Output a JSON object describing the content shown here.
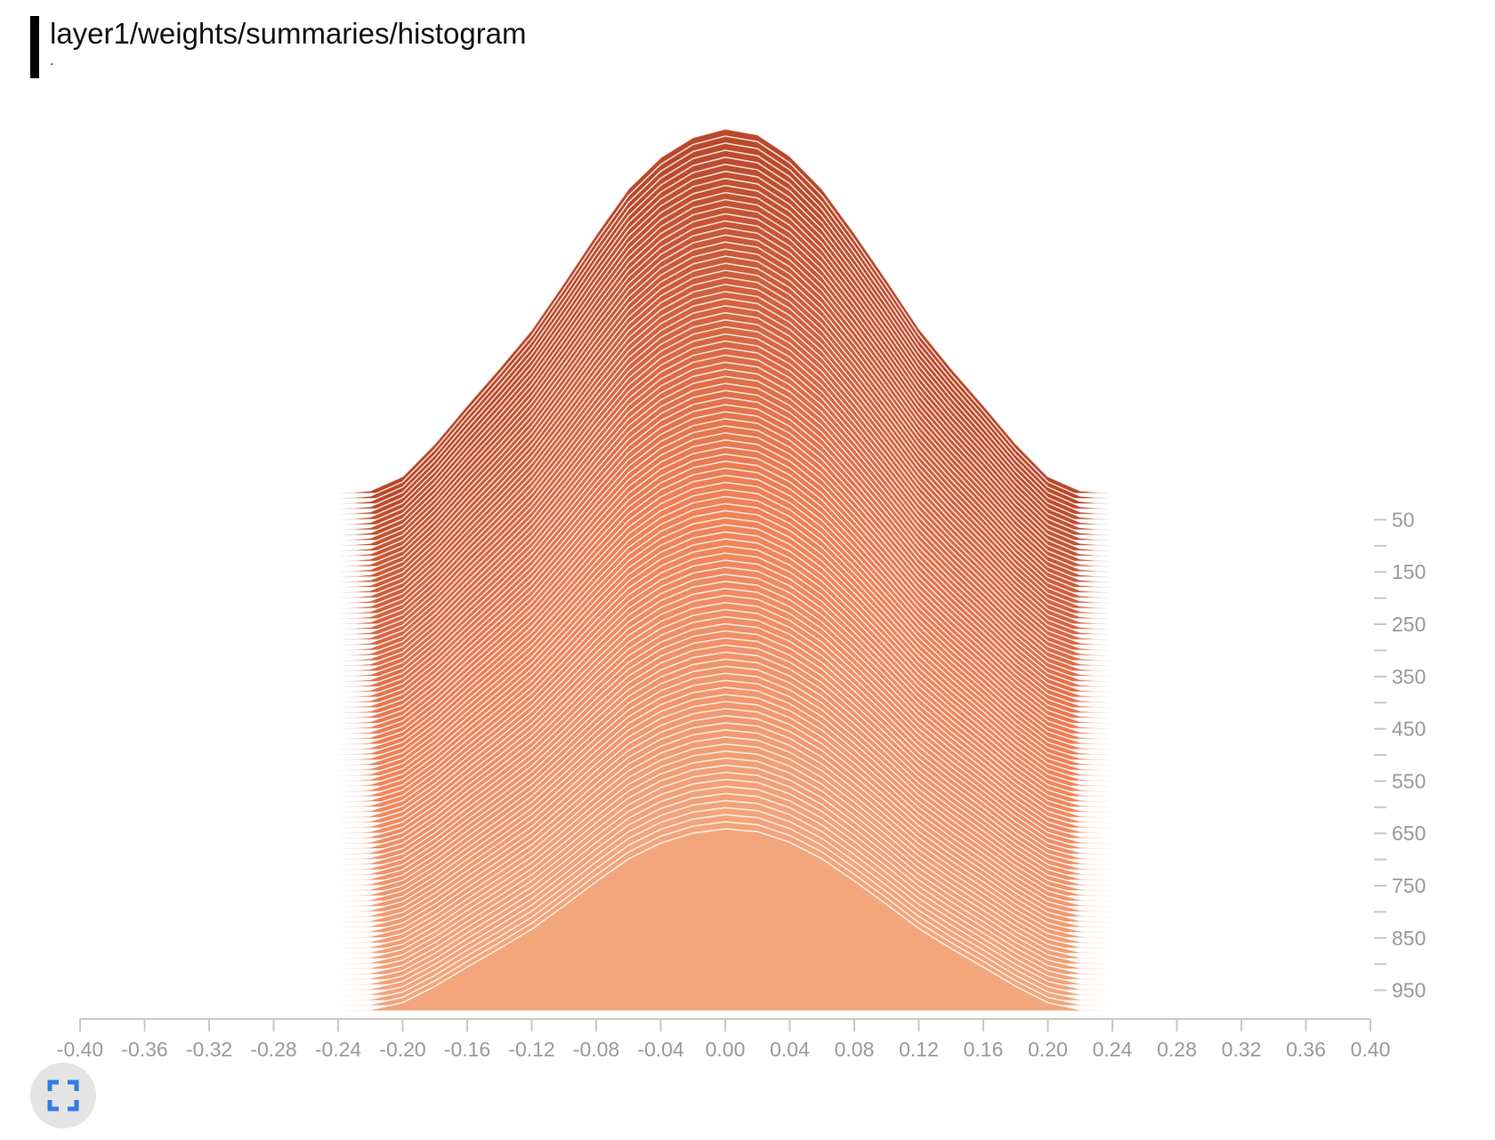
{
  "card": {
    "title": "layer1/weights/summaries/histogram",
    "subtitle": "."
  },
  "icons": {
    "fullscreen": "fullscreen-icon"
  },
  "colors": {
    "oldest_step": "#b8482a",
    "mid_step": "#ee7f55",
    "newest_step": "#f3a67c",
    "axis": "#c8c8c8",
    "tick_text": "#9a9a9a"
  },
  "chart_data": {
    "type": "histogram-offset",
    "title": "layer1/weights/summaries/histogram",
    "x_ticks": [
      "-0.40",
      "-0.36",
      "-0.32",
      "-0.28",
      "-0.24",
      "-0.20",
      "-0.16",
      "-0.12",
      "-0.08",
      "-0.04",
      "0.00",
      "0.04",
      "0.08",
      "0.12",
      "0.16",
      "0.20",
      "0.24",
      "0.28",
      "0.32",
      "0.36",
      "0.40"
    ],
    "xlim": [
      -0.4,
      0.4
    ],
    "step_ticks": [
      "50",
      "150",
      "250",
      "350",
      "450",
      "550",
      "650",
      "750",
      "850",
      "950"
    ],
    "step_range": [
      0,
      1000
    ],
    "series_steps": [
      0,
      10,
      20,
      30,
      40,
      50,
      60,
      70,
      80,
      90,
      100,
      110,
      120,
      130,
      140,
      150,
      160,
      170,
      180,
      190,
      200,
      210,
      220,
      230,
      240,
      250,
      260,
      270,
      280,
      290,
      300,
      310,
      320,
      330,
      340,
      350,
      360,
      370,
      380,
      390,
      400,
      410,
      420,
      430,
      440,
      450,
      460,
      470,
      480,
      490,
      500,
      510,
      520,
      530,
      540,
      550,
      560,
      570,
      580,
      590,
      600,
      610,
      620,
      630,
      640,
      650,
      660,
      670,
      680,
      690,
      700,
      710,
      720,
      730,
      740,
      750,
      760,
      770,
      780,
      790,
      800,
      810,
      820,
      830,
      840,
      850,
      860,
      870,
      880,
      890,
      900,
      910,
      920,
      930,
      940,
      950,
      960,
      970,
      980,
      990
    ],
    "bin_centers": [
      -0.22,
      -0.2,
      -0.18,
      -0.16,
      -0.14,
      -0.12,
      -0.1,
      -0.08,
      -0.06,
      -0.04,
      -0.02,
      0.0,
      0.02,
      0.04,
      0.06,
      0.08,
      0.1,
      0.12,
      0.14,
      0.16,
      0.18,
      0.2,
      0.22
    ],
    "bin_counts": [
      2,
      12,
      35,
      62,
      88,
      115,
      148,
      182,
      214,
      236,
      250,
      256,
      252,
      237,
      214,
      183,
      150,
      116,
      88,
      62,
      35,
      12,
      2
    ],
    "count_max": 256,
    "grid": false,
    "legend": "none"
  }
}
